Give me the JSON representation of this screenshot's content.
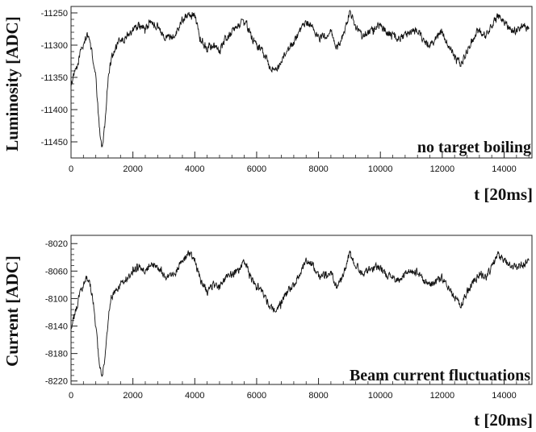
{
  "chart_data": [
    {
      "type": "line",
      "title": "",
      "xlabel": "t [20ms]",
      "ylabel": "Luminosity [ADC]",
      "annotation": "no target boiling",
      "xlim": [
        0,
        14900
      ],
      "ylim": [
        -11475,
        -11240
      ],
      "x_ticks": [
        0,
        2000,
        4000,
        6000,
        8000,
        10000,
        12000,
        14000
      ],
      "x_tick_labels": [
        "0",
        "2000",
        "4000",
        "6000",
        "8000",
        "10000",
        "12000",
        "14000"
      ],
      "y_ticks": [
        -11250,
        -11300,
        -11350,
        -11400,
        -11450
      ],
      "y_tick_labels": [
        "-11250",
        "-11300",
        "-11350",
        "-11400",
        "-11450"
      ],
      "grid": false,
      "series": [
        {
          "x": [
            0,
            100,
            200,
            300,
            400,
            500,
            600,
            700,
            800,
            900,
            1000,
            1100,
            1200,
            1300,
            1400,
            1500,
            1600,
            1700,
            1800,
            1900,
            2000,
            2200,
            2400,
            2600,
            2800,
            3000,
            3200,
            3400,
            3600,
            3800,
            4000,
            4200,
            4400,
            4600,
            4800,
            5000,
            5200,
            5400,
            5600,
            5800,
            6000,
            6200,
            6400,
            6600,
            6800,
            7000,
            7200,
            7400,
            7600,
            7800,
            8000,
            8200,
            8400,
            8600,
            8800,
            9000,
            9200,
            9400,
            9600,
            9800,
            10000,
            10200,
            10400,
            10600,
            10800,
            11000,
            11200,
            11400,
            11600,
            11800,
            12000,
            12200,
            12400,
            12600,
            12800,
            13000,
            13200,
            13400,
            13600,
            13800,
            14000,
            14200,
            14400,
            14600,
            14800
          ],
          "y": [
            -11360,
            -11345,
            -11335,
            -11310,
            -11300,
            -11285,
            -11290,
            -11320,
            -11350,
            -11420,
            -11460,
            -11420,
            -11350,
            -11320,
            -11310,
            -11300,
            -11290,
            -11295,
            -11285,
            -11280,
            -11275,
            -11270,
            -11275,
            -11265,
            -11270,
            -11285,
            -11290,
            -11280,
            -11260,
            -11250,
            -11255,
            -11290,
            -11305,
            -11300,
            -11310,
            -11290,
            -11280,
            -11270,
            -11260,
            -11285,
            -11300,
            -11310,
            -11330,
            -11340,
            -11325,
            -11310,
            -11295,
            -11280,
            -11265,
            -11270,
            -11290,
            -11285,
            -11280,
            -11305,
            -11285,
            -11250,
            -11270,
            -11285,
            -11280,
            -11275,
            -11270,
            -11280,
            -11285,
            -11290,
            -11285,
            -11280,
            -11275,
            -11295,
            -11300,
            -11290,
            -11280,
            -11300,
            -11320,
            -11330,
            -11310,
            -11290,
            -11275,
            -11285,
            -11270,
            -11255,
            -11265,
            -11275,
            -11280,
            -11270,
            -11275
          ]
        }
      ]
    },
    {
      "type": "line",
      "title": "",
      "xlabel": "t [20ms]",
      "ylabel": "Current [ADC]",
      "annotation": "Beam current fluctuations",
      "xlim": [
        0,
        14900
      ],
      "ylim": [
        -8225,
        -8008
      ],
      "x_ticks": [
        0,
        2000,
        4000,
        6000,
        8000,
        10000,
        12000,
        14000
      ],
      "x_tick_labels": [
        "0",
        "2000",
        "4000",
        "6000",
        "8000",
        "10000",
        "12000",
        "14000"
      ],
      "y_ticks": [
        -8020,
        -8060,
        -8100,
        -8140,
        -8180,
        -8220
      ],
      "y_tick_labels": [
        "-8020",
        "-8060",
        "-8100",
        "-8140",
        "-8180",
        "-8220"
      ],
      "grid": false,
      "series": [
        {
          "x": [
            0,
            100,
            200,
            300,
            400,
            500,
            600,
            700,
            800,
            900,
            1000,
            1100,
            1200,
            1300,
            1400,
            1500,
            1600,
            1700,
            1800,
            1900,
            2000,
            2200,
            2400,
            2600,
            2800,
            3000,
            3200,
            3400,
            3600,
            3800,
            4000,
            4200,
            4400,
            4600,
            4800,
            5000,
            5200,
            5400,
            5600,
            5800,
            6000,
            6200,
            6400,
            6600,
            6800,
            7000,
            7200,
            7400,
            7600,
            7800,
            8000,
            8200,
            8400,
            8600,
            8800,
            9000,
            9200,
            9400,
            9600,
            9800,
            10000,
            10200,
            10400,
            10600,
            10800,
            11000,
            11200,
            11400,
            11600,
            11800,
            12000,
            12200,
            12400,
            12600,
            12800,
            13000,
            13200,
            13400,
            13600,
            13800,
            14000,
            14200,
            14400,
            14600,
            14800
          ],
          "y": [
            -8140,
            -8125,
            -8110,
            -8090,
            -8080,
            -8070,
            -8075,
            -8100,
            -8140,
            -8190,
            -8215,
            -8185,
            -8130,
            -8100,
            -8090,
            -8085,
            -8080,
            -8075,
            -8070,
            -8065,
            -8060,
            -8055,
            -8060,
            -8050,
            -8055,
            -8065,
            -8070,
            -8060,
            -8045,
            -8035,
            -8045,
            -8075,
            -8090,
            -8080,
            -8085,
            -8070,
            -8065,
            -8060,
            -8045,
            -8070,
            -8080,
            -8090,
            -8110,
            -8120,
            -8105,
            -8090,
            -8080,
            -8065,
            -8045,
            -8050,
            -8070,
            -8065,
            -8060,
            -8085,
            -8065,
            -8035,
            -8050,
            -8065,
            -8060,
            -8055,
            -8055,
            -8065,
            -8070,
            -8075,
            -8065,
            -8060,
            -8060,
            -8075,
            -8080,
            -8075,
            -8070,
            -8085,
            -8100,
            -8110,
            -8090,
            -8075,
            -8065,
            -8070,
            -8055,
            -8035,
            -8045,
            -8050,
            -8055,
            -8050,
            -8045
          ]
        }
      ]
    }
  ]
}
